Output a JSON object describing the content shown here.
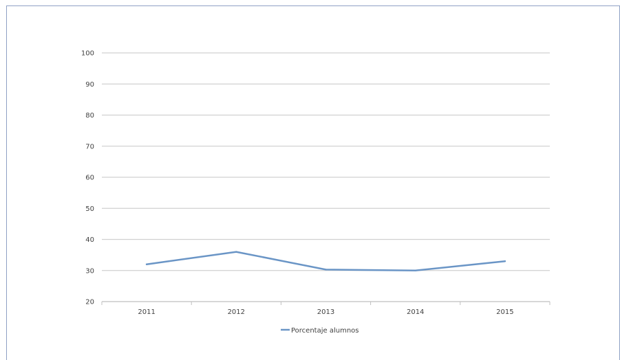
{
  "chart_data": {
    "type": "line",
    "title": "",
    "xlabel": "",
    "ylabel": "",
    "categories": [
      "2011",
      "2012",
      "2013",
      "2014",
      "2015"
    ],
    "series": [
      {
        "name": "Porcentaje alumnos",
        "values": [
          32,
          36,
          30.3,
          30,
          33
        ],
        "color": "#6a95c6"
      }
    ],
    "ylim": [
      20,
      100
    ],
    "yticks": [
      "20",
      "30",
      "40",
      "50",
      "60",
      "70",
      "80",
      "90",
      "100"
    ],
    "grid": true,
    "legend_position": "bottom"
  }
}
